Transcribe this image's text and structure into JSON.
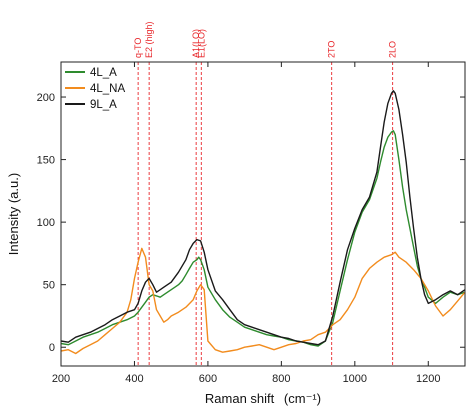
{
  "chart_data": {
    "type": "line",
    "xlabel": "Raman shift",
    "xlabel_unit": "(cm⁻¹)",
    "ylabel": "Intensity (a.u.)",
    "xlim": [
      200,
      1300
    ],
    "ylim": [
      -15,
      228
    ],
    "x_ticks": [
      200,
      400,
      600,
      800,
      1000,
      1200
    ],
    "x_tick_labels": [
      "200",
      "400",
      "600",
      "800",
      "1000",
      "1200"
    ],
    "y_ticks": [
      0,
      50,
      100,
      150,
      200
    ],
    "y_tick_labels": [
      "0",
      "50",
      "100",
      "150",
      "200"
    ],
    "legend_position": "top-left",
    "marker_color": "#e8262a",
    "vertical_markers": [
      {
        "x": 410,
        "label": "q-TO"
      },
      {
        "x": 440,
        "label": "E2 (high)"
      },
      {
        "x": 568,
        "label": "A1(LO)"
      },
      {
        "x": 582,
        "label": "E1(LO)"
      },
      {
        "x": 937,
        "label": "2TO"
      },
      {
        "x": 1103,
        "label": "2LO"
      }
    ],
    "series": [
      {
        "name": "4L_A",
        "color": "#2e8b2e",
        "x": [
          200,
          220,
          240,
          260,
          280,
          300,
          320,
          340,
          360,
          380,
          400,
          410,
          420,
          430,
          440,
          450,
          460,
          470,
          480,
          490,
          500,
          510,
          520,
          530,
          540,
          550,
          560,
          570,
          575,
          580,
          590,
          600,
          620,
          640,
          660,
          680,
          700,
          720,
          740,
          760,
          780,
          800,
          820,
          840,
          860,
          880,
          900,
          920,
          940,
          960,
          980,
          1000,
          1020,
          1040,
          1060,
          1070,
          1080,
          1090,
          1100,
          1105,
          1110,
          1120,
          1130,
          1140,
          1150,
          1160,
          1170,
          1180,
          1190,
          1200,
          1220,
          1240,
          1260,
          1280,
          1300
        ],
        "y": [
          3,
          2,
          5,
          8,
          10,
          12,
          15,
          18,
          20,
          22,
          25,
          28,
          32,
          36,
          40,
          42,
          41,
          40,
          42,
          44,
          46,
          48,
          50,
          53,
          58,
          63,
          68,
          70,
          72,
          70,
          62,
          48,
          38,
          30,
          24,
          20,
          16,
          14,
          12,
          10,
          9,
          8,
          6,
          5,
          4,
          2,
          1,
          5,
          20,
          45,
          70,
          92,
          108,
          118,
          135,
          148,
          160,
          168,
          172,
          173,
          170,
          150,
          128,
          110,
          95,
          80,
          65,
          55,
          48,
          40,
          35,
          40,
          44,
          42,
          44
        ]
      },
      {
        "name": "4L_NA",
        "color": "#f28c1e",
        "x": [
          200,
          220,
          240,
          260,
          280,
          300,
          320,
          340,
          360,
          380,
          390,
          400,
          410,
          420,
          430,
          440,
          450,
          460,
          470,
          480,
          490,
          500,
          520,
          540,
          560,
          570,
          580,
          590,
          600,
          620,
          640,
          660,
          680,
          700,
          720,
          740,
          760,
          780,
          800,
          820,
          840,
          860,
          880,
          900,
          920,
          940,
          960,
          980,
          1000,
          1020,
          1040,
          1060,
          1080,
          1100,
          1110,
          1120,
          1140,
          1160,
          1180,
          1200,
          1220,
          1240,
          1260,
          1280,
          1300
        ],
        "y": [
          -3,
          -2,
          -5,
          -1,
          2,
          5,
          10,
          15,
          20,
          28,
          38,
          55,
          68,
          79,
          72,
          50,
          45,
          30,
          25,
          20,
          22,
          25,
          28,
          32,
          38,
          45,
          50,
          46,
          5,
          -2,
          -4,
          -3,
          -2,
          0,
          1,
          2,
          0,
          -2,
          0,
          2,
          3,
          5,
          6,
          10,
          12,
          18,
          22,
          30,
          40,
          55,
          63,
          68,
          72,
          74,
          76,
          72,
          68,
          62,
          55,
          45,
          33,
          25,
          30,
          37,
          44
        ]
      },
      {
        "name": "9L_A",
        "color": "#1a1a1a",
        "x": [
          200,
          220,
          240,
          260,
          280,
          300,
          320,
          340,
          360,
          380,
          400,
          410,
          420,
          430,
          440,
          450,
          460,
          470,
          480,
          490,
          500,
          520,
          540,
          550,
          560,
          570,
          580,
          590,
          600,
          620,
          640,
          660,
          680,
          700,
          720,
          740,
          760,
          780,
          800,
          820,
          840,
          860,
          880,
          900,
          920,
          940,
          960,
          980,
          1000,
          1020,
          1040,
          1060,
          1070,
          1080,
          1090,
          1100,
          1105,
          1110,
          1120,
          1130,
          1140,
          1150,
          1160,
          1170,
          1180,
          1190,
          1200,
          1220,
          1240,
          1260,
          1280,
          1300
        ],
        "y": [
          5,
          4,
          8,
          10,
          12,
          15,
          18,
          22,
          25,
          28,
          30,
          35,
          45,
          52,
          55,
          50,
          44,
          46,
          48,
          50,
          52,
          60,
          70,
          78,
          83,
          86,
          85,
          76,
          62,
          45,
          38,
          30,
          22,
          18,
          16,
          14,
          12,
          10,
          8,
          7,
          5,
          4,
          3,
          2,
          5,
          25,
          52,
          78,
          95,
          110,
          120,
          140,
          160,
          180,
          195,
          203,
          205,
          203,
          190,
          170,
          148,
          120,
          95,
          72,
          55,
          42,
          35,
          38,
          42,
          45,
          42,
          46
        ]
      }
    ]
  }
}
